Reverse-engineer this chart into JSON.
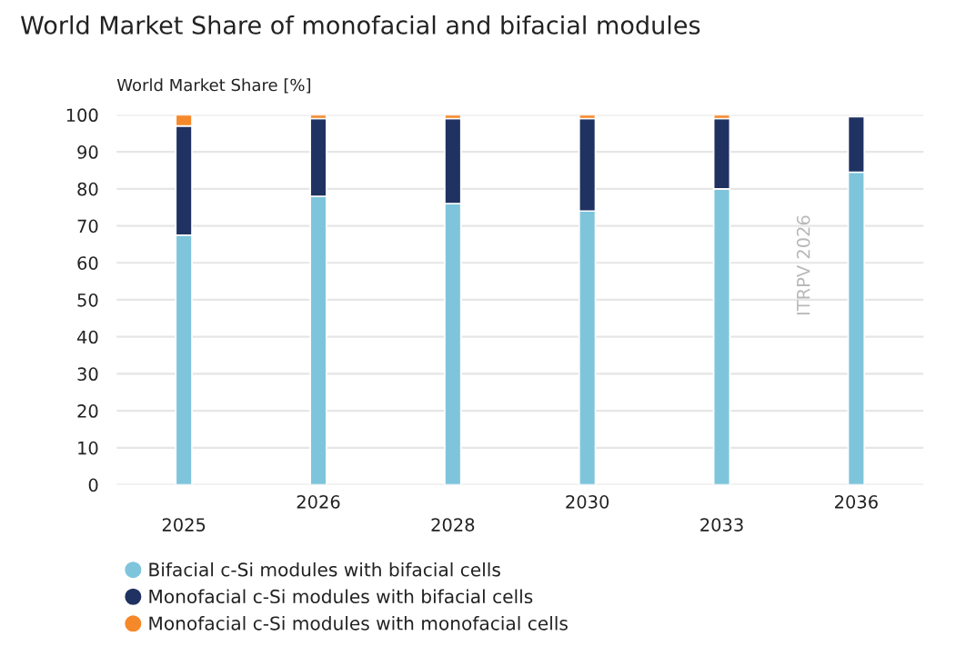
{
  "chart_data": {
    "type": "bar",
    "stacked": true,
    "title": "World Market Share of monofacial and bifacial modules",
    "ylabel": "World Market Share [%]",
    "categories": [
      "2025",
      "2026",
      "2028",
      "2030",
      "2033",
      "2036"
    ],
    "series": [
      {
        "name": "Bifacial c-Si modules with bifacial cells",
        "color": "#7ec5dc",
        "values": [
          67.5,
          78,
          76,
          74,
          80,
          84.5
        ]
      },
      {
        "name": "Monofacial c-Si modules with bifacial cells",
        "color": "#1f3261",
        "values": [
          29.5,
          21,
          23,
          25,
          19,
          15
        ]
      },
      {
        "name": "Monofacial c-Si modules with monofacial cells",
        "color": "#f5892a",
        "values": [
          3,
          1,
          1,
          1,
          1,
          null
        ]
      }
    ],
    "ylim": [
      0,
      100
    ],
    "yticks": [
      0,
      10,
      20,
      30,
      40,
      50,
      60,
      70,
      80,
      90,
      100
    ],
    "grid": "y",
    "legend": "bottom",
    "annotations": [
      "ITRPV 2026"
    ]
  }
}
